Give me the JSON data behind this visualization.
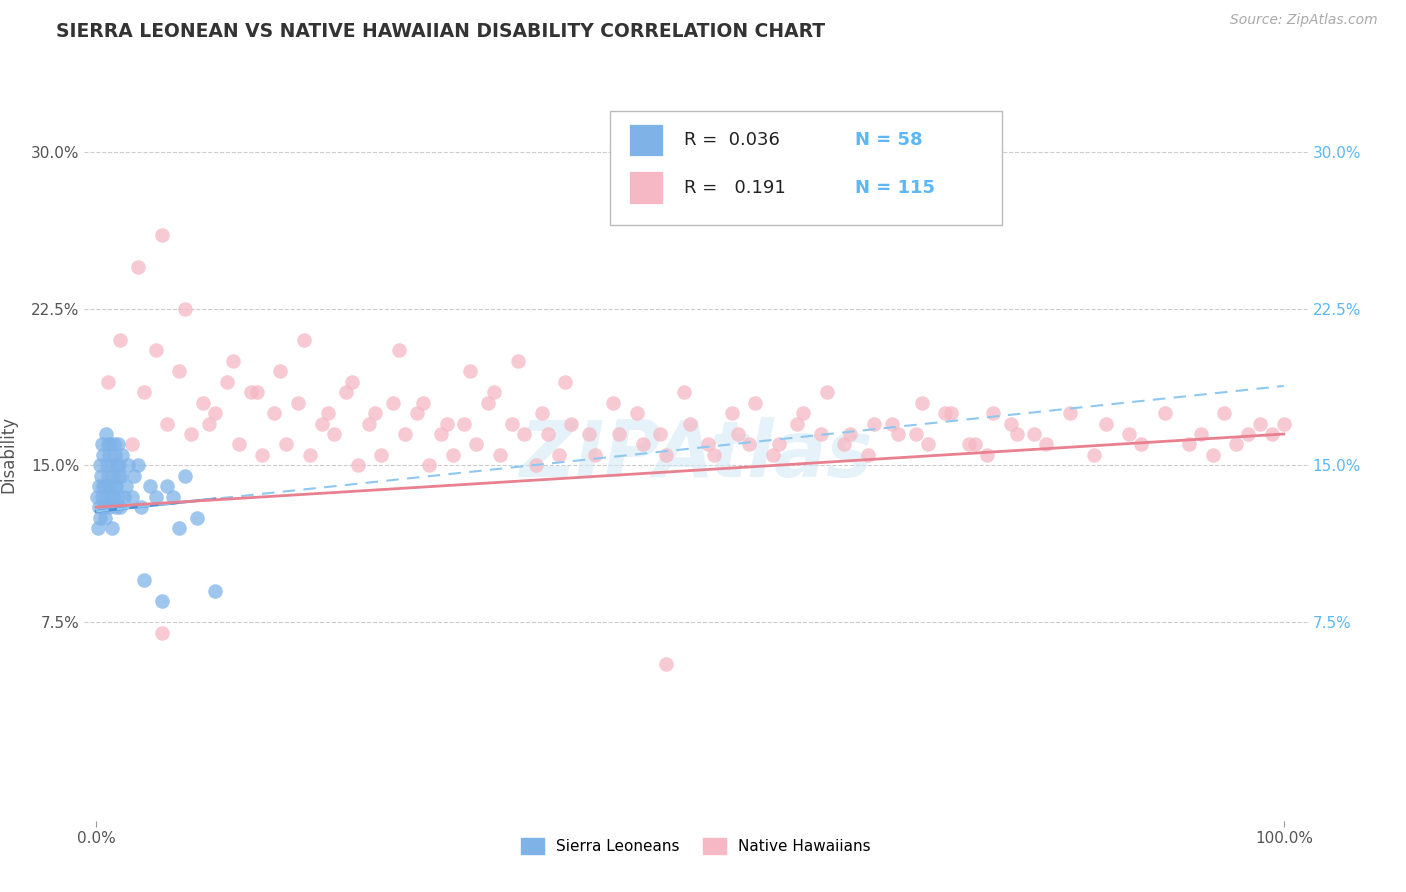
{
  "title": "SIERRA LEONEAN VS NATIVE HAWAIIAN DISABILITY CORRELATION CHART",
  "source": "Source: ZipAtlas.com",
  "ylabel": "Disability",
  "color_blue": "#7fb3e8",
  "color_pink": "#f5b8c4",
  "color_blue_line": "#4a90d9",
  "color_pink_line": "#e8808f",
  "color_blue_dash": "#8ec8f0",
  "color_title": "#333333",
  "color_source": "#aaaaaa",
  "color_axis_label": "#555555",
  "color_tick_right": "#5bb8f5",
  "background_color": "#ffffff",
  "grid_color": "#cccccc",
  "legend_r1": "R =  0.036",
  "legend_r2": "R =   0.191",
  "legend_n1": "N = 58",
  "legend_n2": "N = 115",
  "sl_x": [
    0.1,
    0.15,
    0.2,
    0.25,
    0.3,
    0.35,
    0.4,
    0.45,
    0.5,
    0.55,
    0.6,
    0.65,
    0.7,
    0.75,
    0.8,
    0.85,
    0.9,
    0.95,
    1.0,
    1.05,
    1.1,
    1.15,
    1.2,
    1.25,
    1.3,
    1.35,
    1.4,
    1.45,
    1.5,
    1.55,
    1.6,
    1.65,
    1.7,
    1.75,
    1.8,
    1.85,
    1.9,
    1.95,
    2.0,
    2.1,
    2.2,
    2.3,
    2.5,
    2.7,
    3.0,
    3.2,
    3.5,
    3.8,
    4.0,
    4.5,
    5.0,
    5.5,
    6.0,
    6.5,
    7.0,
    7.5,
    8.5,
    10.0
  ],
  "sl_y": [
    13.5,
    12.0,
    14.0,
    13.0,
    15.0,
    12.5,
    14.5,
    13.5,
    16.0,
    14.0,
    15.5,
    13.0,
    14.0,
    12.5,
    16.5,
    13.5,
    15.0,
    14.5,
    16.0,
    13.0,
    15.5,
    14.0,
    16.0,
    13.5,
    15.0,
    12.0,
    14.5,
    13.5,
    16.0,
    14.0,
    15.5,
    13.0,
    14.0,
    15.0,
    13.5,
    16.0,
    14.5,
    15.0,
    13.0,
    14.5,
    15.5,
    13.5,
    14.0,
    15.0,
    13.5,
    14.5,
    15.0,
    13.0,
    9.5,
    14.0,
    13.5,
    8.5,
    14.0,
    13.5,
    12.0,
    14.5,
    12.5,
    9.0
  ],
  "nh_x": [
    1.0,
    2.0,
    3.0,
    4.0,
    5.0,
    6.0,
    7.0,
    8.0,
    9.0,
    10.0,
    11.0,
    12.0,
    13.0,
    14.0,
    15.0,
    16.0,
    17.0,
    18.0,
    19.0,
    20.0,
    21.0,
    22.0,
    23.0,
    24.0,
    25.0,
    26.0,
    27.0,
    28.0,
    29.0,
    30.0,
    31.0,
    32.0,
    33.0,
    34.0,
    35.0,
    36.0,
    37.0,
    38.0,
    39.0,
    40.0,
    42.0,
    44.0,
    46.0,
    48.0,
    50.0,
    52.0,
    54.0,
    55.0,
    57.0,
    59.0,
    61.0,
    63.0,
    65.0,
    67.0,
    69.0,
    70.0,
    72.0,
    74.0,
    75.0,
    77.0,
    79.0,
    80.0,
    82.0,
    84.0,
    85.0,
    87.0,
    88.0,
    90.0,
    92.0,
    93.0,
    94.0,
    95.0,
    96.0,
    97.0,
    98.0,
    99.0,
    100.0,
    3.5,
    5.5,
    7.5,
    9.5,
    11.5,
    13.5,
    15.5,
    17.5,
    19.5,
    21.5,
    23.5,
    25.5,
    27.5,
    29.5,
    31.5,
    33.5,
    35.5,
    37.5,
    39.5,
    41.5,
    43.5,
    45.5,
    47.5,
    49.5,
    51.5,
    53.5,
    55.5,
    57.5,
    59.5,
    61.5,
    63.5,
    65.5,
    67.5,
    69.5,
    71.5,
    73.5,
    75.5,
    77.5
  ],
  "nh_y": [
    19.0,
    21.0,
    16.0,
    18.5,
    20.5,
    17.0,
    19.5,
    16.5,
    18.0,
    17.5,
    19.0,
    16.0,
    18.5,
    15.5,
    17.5,
    16.0,
    18.0,
    15.5,
    17.0,
    16.5,
    18.5,
    15.0,
    17.0,
    15.5,
    18.0,
    16.5,
    17.5,
    15.0,
    16.5,
    15.5,
    17.0,
    16.0,
    18.0,
    15.5,
    17.0,
    16.5,
    15.0,
    16.5,
    15.5,
    17.0,
    15.5,
    16.5,
    16.0,
    15.5,
    17.0,
    15.5,
    16.5,
    16.0,
    15.5,
    17.0,
    16.5,
    16.0,
    15.5,
    17.0,
    16.5,
    16.0,
    17.5,
    16.0,
    15.5,
    17.0,
    16.5,
    16.0,
    17.5,
    15.5,
    17.0,
    16.5,
    16.0,
    17.5,
    16.0,
    16.5,
    15.5,
    17.5,
    16.0,
    16.5,
    17.0,
    16.5,
    17.0,
    24.5,
    26.0,
    22.5,
    17.0,
    20.0,
    18.5,
    19.5,
    21.0,
    17.5,
    19.0,
    17.5,
    20.5,
    18.0,
    17.0,
    19.5,
    18.5,
    20.0,
    17.5,
    19.0,
    16.5,
    18.0,
    17.5,
    16.5,
    18.5,
    16.0,
    17.5,
    18.0,
    16.0,
    17.5,
    18.5,
    16.5,
    17.0,
    16.5,
    18.0,
    17.5,
    16.0,
    17.5,
    16.5
  ]
}
